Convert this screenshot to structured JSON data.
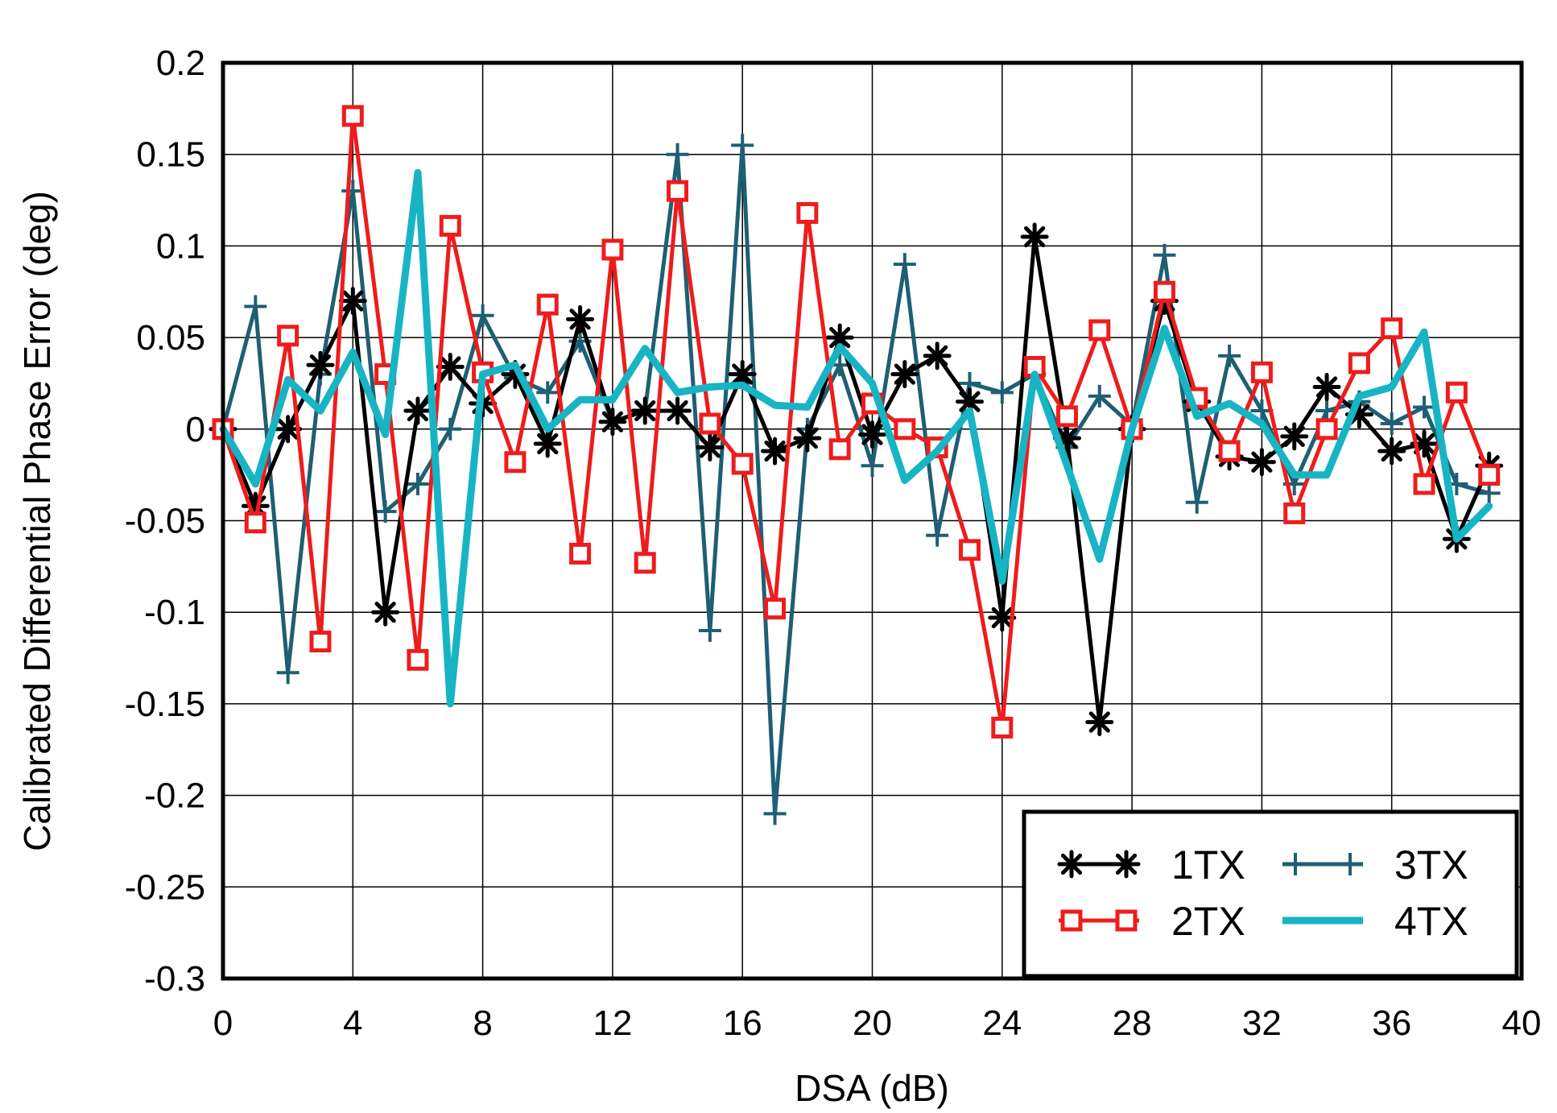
{
  "chart_data": {
    "type": "line",
    "title": "",
    "xlabel": "DSA (dB)",
    "ylabel": "Calibrated Differential Phase Error (deg)",
    "xlim": [
      0,
      40
    ],
    "ylim": [
      -0.3,
      0.2
    ],
    "xticks": [
      0,
      4,
      8,
      12,
      16,
      20,
      24,
      28,
      32,
      36,
      40
    ],
    "xtick_labels": [
      "0",
      "4",
      "8",
      "12",
      "16",
      "20",
      "24",
      "28",
      "32",
      "36",
      "40"
    ],
    "yticks": [
      0.2,
      0.15,
      0.1,
      0.05,
      0,
      -0.05,
      -0.1,
      -0.15,
      -0.2,
      -0.25,
      -0.3
    ],
    "ytick_labels": [
      "0.2",
      "0.15",
      "0.1",
      "0.05",
      "0",
      "-0.05",
      "-0.1",
      "-0.15",
      "-0.2",
      "-0.25",
      "-0.3"
    ],
    "grid": true,
    "legend_position": "bottom-right",
    "x": [
      0,
      1,
      2,
      3,
      4,
      5,
      6,
      7,
      8,
      9,
      10,
      11,
      12,
      13,
      14,
      15,
      16,
      17,
      18,
      19,
      20,
      21,
      22,
      23,
      24,
      25,
      26,
      27,
      28,
      29,
      30,
      31,
      32,
      33,
      34,
      35,
      36,
      37,
      38,
      39
    ],
    "series": [
      {
        "name": "1TX",
        "color": "#000000",
        "marker": "asterisk",
        "values": [
          0.0,
          -0.042,
          0.0,
          0.035,
          0.07,
          -0.1,
          0.01,
          0.034,
          0.014,
          0.03,
          -0.008,
          0.06,
          0.004,
          0.01,
          0.01,
          -0.01,
          0.03,
          -0.012,
          -0.005,
          0.05,
          -0.003,
          0.03,
          0.04,
          0.015,
          -0.103,
          0.105,
          -0.005,
          -0.16,
          0.0,
          0.07,
          0.015,
          -0.015,
          -0.018,
          -0.004,
          0.023,
          0.008,
          -0.012,
          -0.008,
          -0.06,
          -0.02
        ]
      },
      {
        "name": "2TX",
        "color": "#ee1c1c",
        "marker": "square",
        "values": [
          0.0,
          -0.051,
          0.051,
          -0.116,
          0.171,
          0.03,
          -0.126,
          0.111,
          0.031,
          -0.018,
          0.068,
          -0.068,
          0.098,
          -0.073,
          0.13,
          0.003,
          -0.019,
          -0.098,
          0.118,
          -0.011,
          0.014,
          0.0,
          -0.01,
          -0.066,
          -0.163,
          0.034,
          0.007,
          0.054,
          0.0,
          0.075,
          0.017,
          -0.012,
          0.031,
          -0.046,
          0.0,
          0.036,
          0.055,
          -0.03,
          0.02,
          -0.025
        ]
      },
      {
        "name": "3TX",
        "color": "#1e5f73",
        "marker": "plus",
        "values": [
          0.0,
          0.067,
          -0.133,
          0.03,
          0.13,
          -0.045,
          -0.03,
          0.0,
          0.062,
          0.028,
          0.02,
          0.048,
          0.004,
          0.01,
          0.15,
          -0.11,
          0.155,
          -0.21,
          0.0,
          0.035,
          -0.02,
          0.09,
          -0.058,
          0.025,
          0.02,
          0.03,
          -0.01,
          0.018,
          0.002,
          0.095,
          -0.04,
          0.04,
          0.01,
          -0.03,
          0.01,
          0.015,
          0.003,
          0.012,
          -0.03,
          -0.035
        ]
      },
      {
        "name": "4TX",
        "color": "#17b4c4",
        "marker": "none",
        "values": [
          0.0,
          -0.03,
          0.027,
          0.01,
          0.042,
          -0.003,
          0.14,
          -0.15,
          0.03,
          0.035,
          0.0,
          0.016,
          0.016,
          0.044,
          0.02,
          0.023,
          0.024,
          0.013,
          0.012,
          0.045,
          0.025,
          -0.028,
          -0.012,
          0.01,
          -0.083,
          0.03,
          -0.02,
          -0.071,
          0.0,
          0.055,
          0.007,
          0.014,
          0.003,
          -0.025,
          -0.025,
          0.018,
          0.023,
          0.053,
          -0.06,
          -0.042
        ]
      }
    ]
  }
}
